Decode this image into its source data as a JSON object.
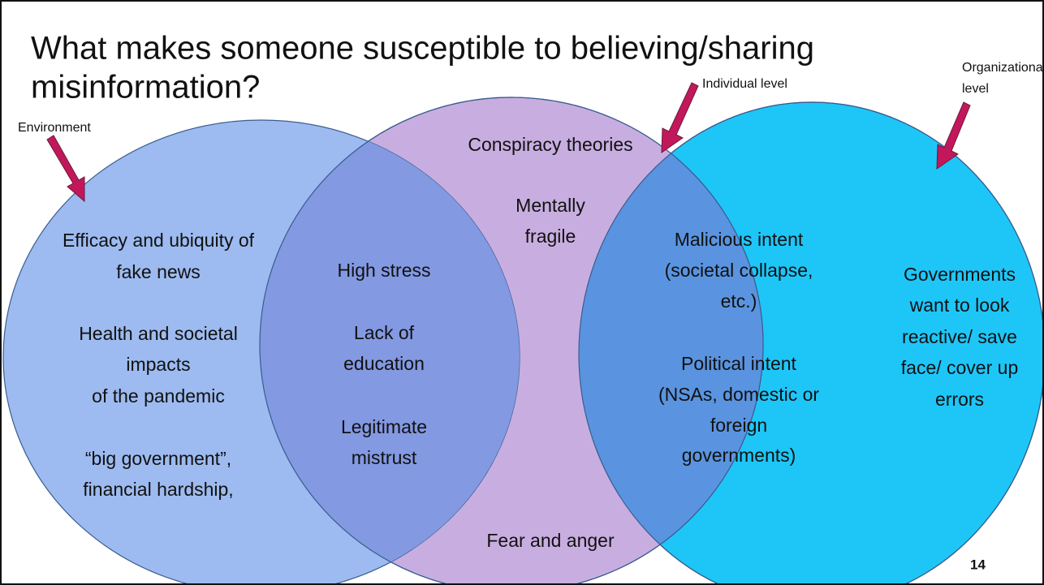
{
  "title": [
    "What makes someone susceptible to believing/sharing",
    "misinformation?"
  ],
  "labels": {
    "environment": "Environment",
    "individual": "Individual level",
    "organizational": [
      "Organizational",
      "level"
    ]
  },
  "regions": [
    {
      "lines": [
        "Efficacy and ubiquity of",
        "fake news",
        "Health and societal",
        "impacts",
        "of the pandemic",
        "“big government”,",
        "financial hardship,"
      ]
    },
    {
      "lines": [
        "High stress",
        "Lack of",
        "education",
        "Legitimate",
        "mistrust"
      ]
    },
    {
      "lines": [
        "Conspiracy theories",
        "Mentally",
        "fragile",
        "Fear and anger"
      ]
    },
    {
      "lines": [
        "Malicious intent",
        "(societal collapse,",
        "etc.)",
        "Political intent",
        "(NSAs, domestic or",
        "foreign",
        "governments)"
      ]
    },
    {
      "lines": [
        "Governments",
        "want to look",
        "reactive/ save",
        "face/ cover up",
        "errors"
      ]
    }
  ],
  "page_number": "14"
}
